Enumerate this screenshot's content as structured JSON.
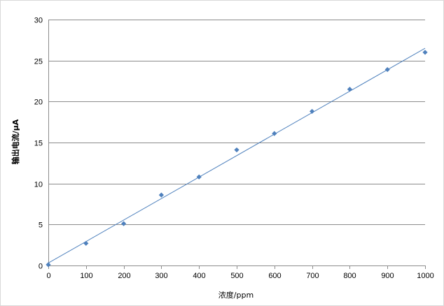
{
  "chart_data": {
    "type": "scatter",
    "title": "",
    "xlabel": "浓度/ppm",
    "ylabel": "输出电流/μA",
    "xlim": [
      0,
      1000
    ],
    "ylim": [
      0,
      30
    ],
    "x_ticks": [
      "0",
      "100",
      "200",
      "300",
      "400",
      "500",
      "600",
      "700",
      "800",
      "900",
      "1000"
    ],
    "y_ticks": [
      "0",
      "5",
      "10",
      "15",
      "20",
      "25",
      "30"
    ],
    "grid": "horizontal",
    "legend": "none",
    "series": [
      {
        "marker": "diamond",
        "color": "#4f81bd",
        "x": [
          0,
          100,
          200,
          300,
          400,
          500,
          600,
          700,
          800,
          900,
          1000
        ],
        "y": [
          0.1,
          2.7,
          5.1,
          8.6,
          10.8,
          14.1,
          16.1,
          18.8,
          21.5,
          23.9,
          26.0
        ]
      }
    ],
    "trendline": {
      "type": "linear",
      "color": "#4f81bd",
      "x": [
        0,
        1000
      ],
      "y": [
        0.3,
        26.5
      ]
    }
  }
}
